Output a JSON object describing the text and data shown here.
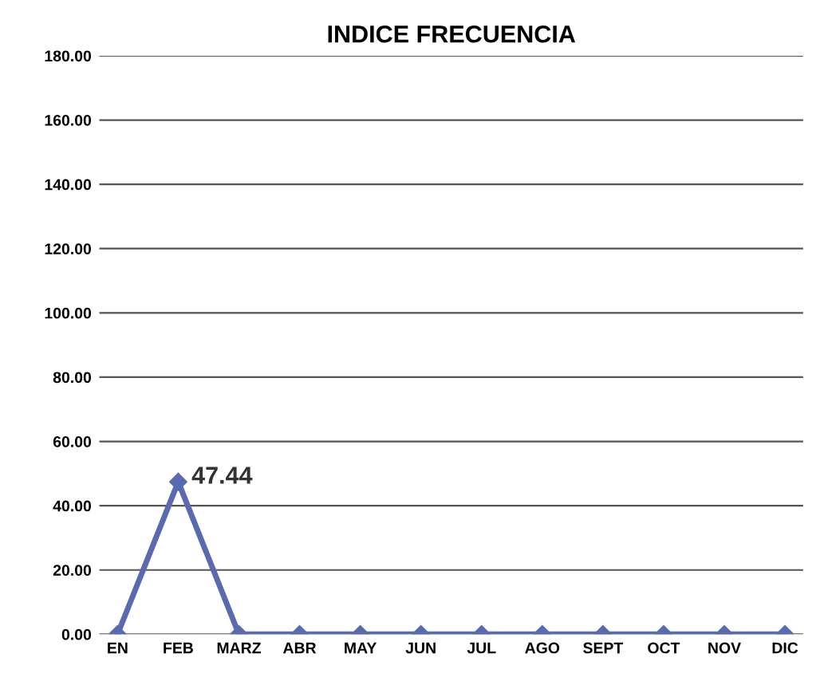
{
  "chart_data": {
    "type": "line",
    "title": "INDICE FRECUENCIA",
    "categories": [
      "EN",
      "FEB",
      "MARZ",
      "ABR",
      "MAY",
      "JUN",
      "JUL",
      "AGO",
      "SEPT",
      "OCT",
      "NOV",
      "DIC"
    ],
    "series": [
      {
        "color": "#5a6aae",
        "values": [
          0,
          47.44,
          0,
          0,
          0,
          0,
          0,
          0,
          0,
          0,
          0,
          0
        ],
        "value_labels": [
          null,
          "47.44",
          null,
          null,
          null,
          null,
          null,
          null,
          null,
          null,
          null,
          null
        ]
      }
    ],
    "ylim": [
      0,
      180
    ],
    "yticks": [
      {
        "value": 0,
        "label": "0.00"
      },
      {
        "value": 20,
        "label": "20.00"
      },
      {
        "value": 40,
        "label": "40.00"
      },
      {
        "value": 60,
        "label": "60.00"
      },
      {
        "value": 80,
        "label": "80.00"
      },
      {
        "value": 100,
        "label": "100.00"
      },
      {
        "value": 120,
        "label": "120.00"
      },
      {
        "value": 140,
        "label": "140.00"
      },
      {
        "value": 160,
        "label": "160.00"
      },
      {
        "value": 180,
        "label": "180.00"
      }
    ],
    "grid": "y",
    "marker": "diamond",
    "line_style": "solid",
    "legend": false
  }
}
